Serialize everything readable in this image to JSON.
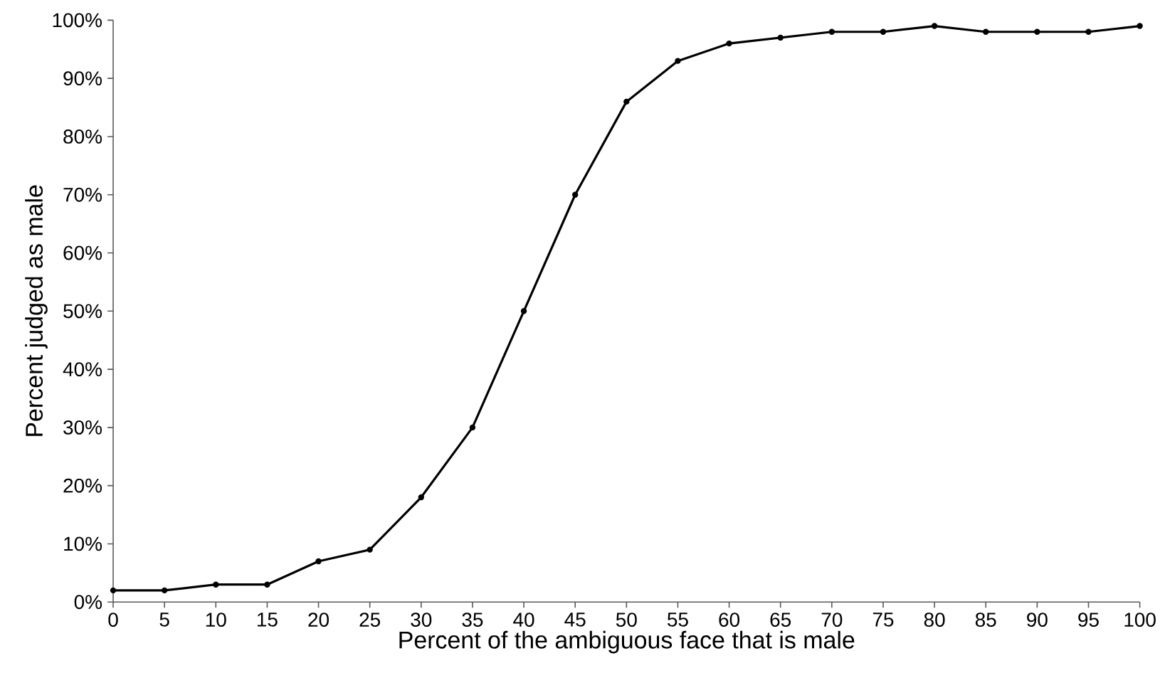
{
  "chart_data": {
    "type": "line",
    "xlabel": "Percent of the ambiguous face that is male",
    "ylabel": "Percent judged as male",
    "x": [
      0,
      5,
      10,
      15,
      20,
      25,
      30,
      35,
      40,
      45,
      50,
      55,
      60,
      65,
      70,
      75,
      80,
      85,
      90,
      95,
      100
    ],
    "series": [
      {
        "color": "#000000",
        "values": [
          2,
          2,
          3,
          3,
          7,
          9,
          18,
          30,
          50,
          70,
          86,
          93,
          96,
          97,
          98,
          98,
          99,
          98,
          98,
          98,
          99
        ]
      }
    ],
    "xlim": [
      0,
      100
    ],
    "xticks": [
      0,
      5,
      10,
      15,
      20,
      25,
      30,
      35,
      40,
      45,
      50,
      55,
      60,
      65,
      70,
      75,
      80,
      85,
      90,
      95,
      100
    ],
    "ylim": [
      0,
      100
    ],
    "yticks": [
      {
        "value": 0,
        "label": "0%"
      },
      {
        "value": 10,
        "label": "10%"
      },
      {
        "value": 20,
        "label": "20%"
      },
      {
        "value": 30,
        "label": "30%"
      },
      {
        "value": 40,
        "label": "40%"
      },
      {
        "value": 50,
        "label": "50%"
      },
      {
        "value": 60,
        "label": "60%"
      },
      {
        "value": 70,
        "label": "70%"
      },
      {
        "value": 80,
        "label": "80%"
      },
      {
        "value": 90,
        "label": "90%"
      },
      {
        "value": 100,
        "label": "100%"
      }
    ],
    "marker": "circle",
    "line_style": "solid"
  }
}
